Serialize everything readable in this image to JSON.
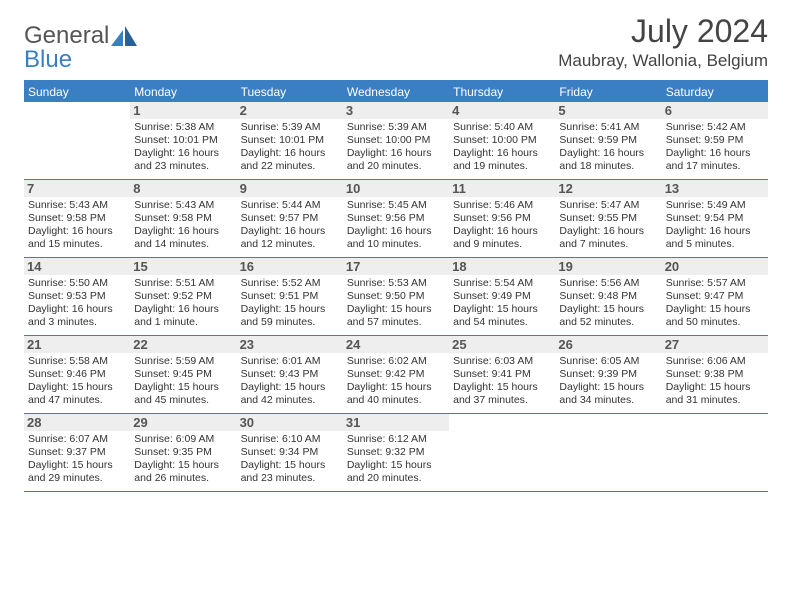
{
  "logo": {
    "text1": "General",
    "text2": "Blue"
  },
  "title": "July 2024",
  "location": "Maubray, Wallonia, Belgium",
  "accent_color": "#3a7fc4",
  "num_bar_bg": "#eeeeee",
  "day_labels": [
    "Sunday",
    "Monday",
    "Tuesday",
    "Wednesday",
    "Thursday",
    "Friday",
    "Saturday"
  ],
  "weeks": [
    [
      null,
      {
        "n": "1",
        "sr": "5:38 AM",
        "ss": "10:01 PM",
        "dl": "16 hours and 23 minutes."
      },
      {
        "n": "2",
        "sr": "5:39 AM",
        "ss": "10:01 PM",
        "dl": "16 hours and 22 minutes."
      },
      {
        "n": "3",
        "sr": "5:39 AM",
        "ss": "10:00 PM",
        "dl": "16 hours and 20 minutes."
      },
      {
        "n": "4",
        "sr": "5:40 AM",
        "ss": "10:00 PM",
        "dl": "16 hours and 19 minutes."
      },
      {
        "n": "5",
        "sr": "5:41 AM",
        "ss": "9:59 PM",
        "dl": "16 hours and 18 minutes."
      },
      {
        "n": "6",
        "sr": "5:42 AM",
        "ss": "9:59 PM",
        "dl": "16 hours and 17 minutes."
      }
    ],
    [
      {
        "n": "7",
        "sr": "5:43 AM",
        "ss": "9:58 PM",
        "dl": "16 hours and 15 minutes."
      },
      {
        "n": "8",
        "sr": "5:43 AM",
        "ss": "9:58 PM",
        "dl": "16 hours and 14 minutes."
      },
      {
        "n": "9",
        "sr": "5:44 AM",
        "ss": "9:57 PM",
        "dl": "16 hours and 12 minutes."
      },
      {
        "n": "10",
        "sr": "5:45 AM",
        "ss": "9:56 PM",
        "dl": "16 hours and 10 minutes."
      },
      {
        "n": "11",
        "sr": "5:46 AM",
        "ss": "9:56 PM",
        "dl": "16 hours and 9 minutes."
      },
      {
        "n": "12",
        "sr": "5:47 AM",
        "ss": "9:55 PM",
        "dl": "16 hours and 7 minutes."
      },
      {
        "n": "13",
        "sr": "5:49 AM",
        "ss": "9:54 PM",
        "dl": "16 hours and 5 minutes."
      }
    ],
    [
      {
        "n": "14",
        "sr": "5:50 AM",
        "ss": "9:53 PM",
        "dl": "16 hours and 3 minutes."
      },
      {
        "n": "15",
        "sr": "5:51 AM",
        "ss": "9:52 PM",
        "dl": "16 hours and 1 minute."
      },
      {
        "n": "16",
        "sr": "5:52 AM",
        "ss": "9:51 PM",
        "dl": "15 hours and 59 minutes."
      },
      {
        "n": "17",
        "sr": "5:53 AM",
        "ss": "9:50 PM",
        "dl": "15 hours and 57 minutes."
      },
      {
        "n": "18",
        "sr": "5:54 AM",
        "ss": "9:49 PM",
        "dl": "15 hours and 54 minutes."
      },
      {
        "n": "19",
        "sr": "5:56 AM",
        "ss": "9:48 PM",
        "dl": "15 hours and 52 minutes."
      },
      {
        "n": "20",
        "sr": "5:57 AM",
        "ss": "9:47 PM",
        "dl": "15 hours and 50 minutes."
      }
    ],
    [
      {
        "n": "21",
        "sr": "5:58 AM",
        "ss": "9:46 PM",
        "dl": "15 hours and 47 minutes."
      },
      {
        "n": "22",
        "sr": "5:59 AM",
        "ss": "9:45 PM",
        "dl": "15 hours and 45 minutes."
      },
      {
        "n": "23",
        "sr": "6:01 AM",
        "ss": "9:43 PM",
        "dl": "15 hours and 42 minutes."
      },
      {
        "n": "24",
        "sr": "6:02 AM",
        "ss": "9:42 PM",
        "dl": "15 hours and 40 minutes."
      },
      {
        "n": "25",
        "sr": "6:03 AM",
        "ss": "9:41 PM",
        "dl": "15 hours and 37 minutes."
      },
      {
        "n": "26",
        "sr": "6:05 AM",
        "ss": "9:39 PM",
        "dl": "15 hours and 34 minutes."
      },
      {
        "n": "27",
        "sr": "6:06 AM",
        "ss": "9:38 PM",
        "dl": "15 hours and 31 minutes."
      }
    ],
    [
      {
        "n": "28",
        "sr": "6:07 AM",
        "ss": "9:37 PM",
        "dl": "15 hours and 29 minutes."
      },
      {
        "n": "29",
        "sr": "6:09 AM",
        "ss": "9:35 PM",
        "dl": "15 hours and 26 minutes."
      },
      {
        "n": "30",
        "sr": "6:10 AM",
        "ss": "9:34 PM",
        "dl": "15 hours and 23 minutes."
      },
      {
        "n": "31",
        "sr": "6:12 AM",
        "ss": "9:32 PM",
        "dl": "15 hours and 20 minutes."
      },
      null,
      null,
      null
    ]
  ],
  "labels": {
    "sunrise": "Sunrise: ",
    "sunset": "Sunset: ",
    "daylight": "Daylight: "
  }
}
